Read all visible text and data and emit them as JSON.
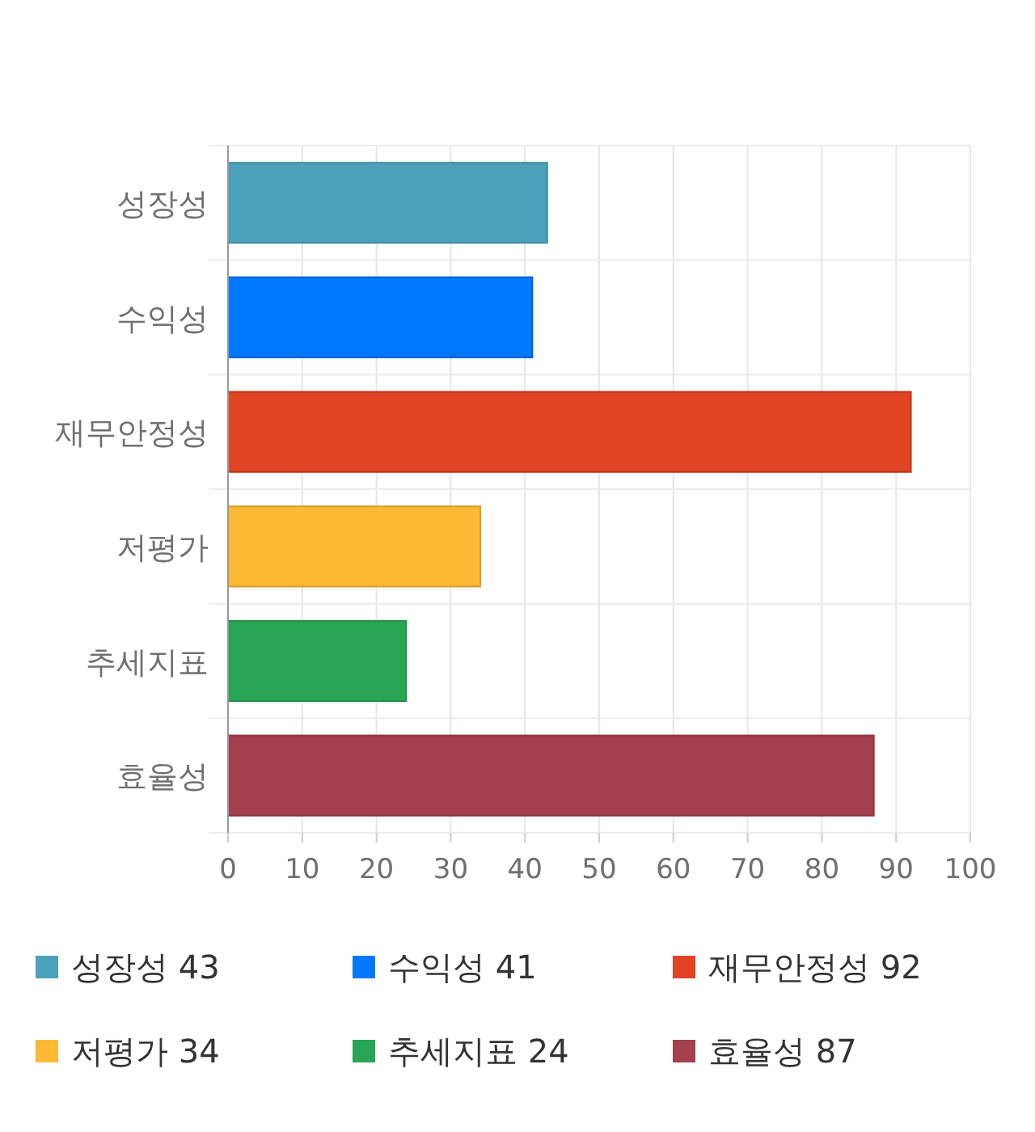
{
  "chart_data": {
    "type": "bar",
    "orientation": "horizontal",
    "stacked": true,
    "categories": [
      "성장성",
      "수익성",
      "재무안정성",
      "저평가",
      "추세지표",
      "효율성"
    ],
    "series": [
      {
        "name": "성장성 43",
        "color": "#4ba1bb",
        "values": [
          43,
          null,
          null,
          null,
          null,
          null
        ]
      },
      {
        "name": "수익성 41",
        "color": "#0077ff",
        "values": [
          null,
          41,
          null,
          null,
          null,
          null
        ]
      },
      {
        "name": "재무안정성 92",
        "color": "#e04422",
        "values": [
          null,
          null,
          92,
          null,
          null,
          null
        ]
      },
      {
        "name": "저평가 34",
        "color": "#fdb933",
        "values": [
          null,
          null,
          null,
          34,
          null,
          null
        ]
      },
      {
        "name": "추세지표 24",
        "color": "#29a655",
        "values": [
          null,
          null,
          null,
          null,
          24,
          null
        ]
      },
      {
        "name": "효율성 87",
        "color": "#a5404e",
        "values": [
          null,
          null,
          null,
          null,
          null,
          87
        ]
      }
    ],
    "xlim": [
      0,
      100
    ],
    "xticks": [
      0,
      10,
      20,
      30,
      40,
      50,
      60,
      70,
      80,
      90,
      100
    ],
    "grid": true,
    "legend": "bottom"
  }
}
